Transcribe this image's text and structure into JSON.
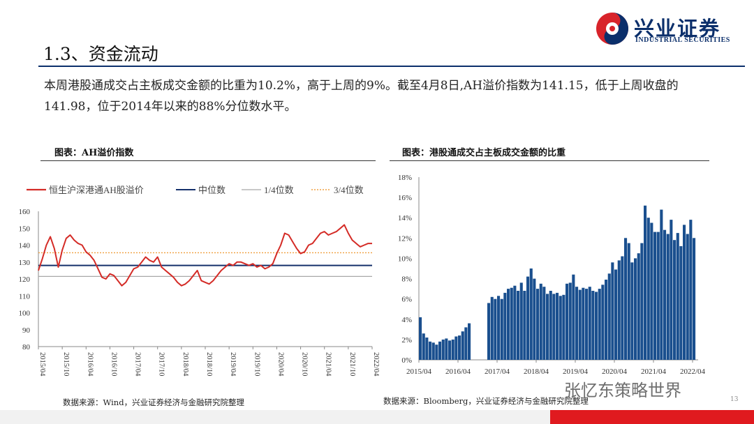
{
  "logo": {
    "cn": "兴业证券",
    "en": "INDUSTRIAL SECURITIES",
    "colors": {
      "red": "#d8232a",
      "blue": "#0b2f6b"
    }
  },
  "section_title": "1.3、资金流动",
  "summary": "本周港股通成交占主板成交金额的比重为10.2%，高于上周的9%。截至4月8日,AH溢价指数为141.15，低于上周收盘的141.98，位于2014年以来的88%分位数水平。",
  "left_panel": {
    "title": "图表：AH溢价指数",
    "source": "数据来源：Wind，兴业证券经济与金融研究院整理"
  },
  "right_panel": {
    "title": "图表：港股通成交占主板成交金额的比重",
    "source": "数据来源：Bloomberg，兴业证券经济与金融研究院整理"
  },
  "watermark": "张忆东策略世界",
  "page_number": "13",
  "chart_data": [
    {
      "type": "line",
      "legend": [
        "恒生沪深港通AH股溢价",
        "中位数",
        "1/4位数",
        "3/4位数"
      ],
      "legend_position": "top",
      "colors": {
        "series": "#d42b26",
        "median": "#15306b",
        "q1": "#a8a8a8",
        "q3": "#f0a040"
      },
      "ylim": [
        80,
        160
      ],
      "yticks": [
        80,
        90,
        100,
        110,
        120,
        130,
        140,
        150,
        160
      ],
      "xtick_labels": [
        "2015/04",
        "2015/10",
        "2016/04",
        "2016/10",
        "2017/04",
        "2017/10",
        "2018/04",
        "2018/10",
        "2019/04",
        "2019/10",
        "2020/04",
        "2020/10",
        "2021/04",
        "2021/10",
        "2022/04"
      ],
      "reference_lines": {
        "median": 128,
        "q1": 121.5,
        "q3": 135.5
      },
      "series": [
        {
          "name": "恒生沪深港通AH股溢价",
          "x": [
            "2015/04",
            "2015/05",
            "2015/06",
            "2015/07",
            "2015/08",
            "2015/09",
            "2015/10",
            "2015/11",
            "2015/12",
            "2016/01",
            "2016/02",
            "2016/03",
            "2016/04",
            "2016/05",
            "2016/06",
            "2016/07",
            "2016/08",
            "2016/09",
            "2016/10",
            "2016/11",
            "2016/12",
            "2017/01",
            "2017/02",
            "2017/03",
            "2017/04",
            "2017/05",
            "2017/06",
            "2017/07",
            "2017/08",
            "2017/09",
            "2017/10",
            "2017/11",
            "2017/12",
            "2018/01",
            "2018/02",
            "2018/03",
            "2018/04",
            "2018/05",
            "2018/06",
            "2018/07",
            "2018/08",
            "2018/09",
            "2018/10",
            "2018/11",
            "2018/12",
            "2019/01",
            "2019/02",
            "2019/03",
            "2019/04",
            "2019/05",
            "2019/06",
            "2019/07",
            "2019/08",
            "2019/09",
            "2019/10",
            "2019/11",
            "2019/12",
            "2020/01",
            "2020/02",
            "2020/03",
            "2020/04",
            "2020/05",
            "2020/06",
            "2020/07",
            "2020/08",
            "2020/09",
            "2020/10",
            "2020/11",
            "2020/12",
            "2021/01",
            "2021/02",
            "2021/03",
            "2021/04",
            "2021/05",
            "2021/06",
            "2021/07",
            "2021/08",
            "2021/09",
            "2021/10",
            "2021/11",
            "2021/12",
            "2022/01",
            "2022/02",
            "2022/03",
            "2022/04"
          ],
          "y": [
            125,
            132,
            140,
            145,
            138,
            127,
            137,
            144,
            146,
            143,
            141,
            140,
            136,
            134,
            131,
            126,
            121,
            120,
            123,
            122,
            119,
            116,
            118,
            122,
            126,
            127,
            130,
            133,
            131,
            130,
            133,
            127,
            125,
            123,
            121,
            118,
            116,
            117,
            119,
            122,
            125,
            119,
            118,
            117,
            119,
            122,
            125,
            127,
            129,
            128,
            130,
            130,
            129,
            128,
            129,
            127,
            128,
            126,
            127,
            129,
            135,
            140,
            147,
            146,
            142,
            138,
            135,
            136,
            140,
            141,
            144,
            147,
            148,
            146,
            147,
            148,
            150,
            152,
            147,
            143,
            141,
            139,
            140,
            141,
            141
          ]
        }
      ]
    },
    {
      "type": "bar",
      "ylim": [
        0,
        18
      ],
      "yticks": [
        "0%",
        "2%",
        "4%",
        "6%",
        "8%",
        "10%",
        "12%",
        "14%",
        "16%",
        "18%"
      ],
      "xtick_labels": [
        "2015/04",
        "2016/04",
        "2017/04",
        "2018/04",
        "2019/04",
        "2020/04",
        "2021/04",
        "2022/04"
      ],
      "bar_color": "#1a4f8e",
      "series": [
        {
          "x": [
            "2015/04",
            "2015/05",
            "2015/06",
            "2015/07",
            "2015/08",
            "2015/09",
            "2015/10",
            "2015/11",
            "2015/12",
            "2016/01",
            "2016/02",
            "2016/03",
            "2016/04",
            "2016/05",
            "2016/06",
            "2016/07",
            "2016/08",
            "2016/09",
            "2016/10",
            "2016/11",
            "2016/12",
            "2017/01",
            "2017/02",
            "2017/03",
            "2017/04",
            "2017/05",
            "2017/06",
            "2017/07",
            "2017/08",
            "2017/09",
            "2017/10",
            "2017/11",
            "2017/12",
            "2018/01",
            "2018/02",
            "2018/03",
            "2018/04",
            "2018/05",
            "2018/06",
            "2018/07",
            "2018/08",
            "2018/09",
            "2018/10",
            "2018/11",
            "2018/12",
            "2019/01",
            "2019/02",
            "2019/03",
            "2019/04",
            "2019/05",
            "2019/06",
            "2019/07",
            "2019/08",
            "2019/09",
            "2019/10",
            "2019/11",
            "2019/12",
            "2020/01",
            "2020/02",
            "2020/03",
            "2020/04",
            "2020/05",
            "2020/06",
            "2020/07",
            "2020/08",
            "2020/09",
            "2020/10",
            "2020/11",
            "2020/12",
            "2021/01",
            "2021/02",
            "2021/03",
            "2021/04",
            "2021/05",
            "2021/06",
            "2021/07",
            "2021/08",
            "2021/09",
            "2021/10",
            "2021/11",
            "2021/12",
            "2022/01",
            "2022/02",
            "2022/03",
            "2022/04"
          ],
          "y": [
            4.2,
            2.6,
            2.2,
            1.8,
            1.7,
            1.5,
            1.8,
            2.0,
            2.1,
            1.9,
            2.0,
            2.3,
            2.4,
            2.8,
            3.2,
            3.6,
            null,
            null,
            null,
            null,
            null,
            5.6,
            6.2,
            6.0,
            6.3,
            6.0,
            6.6,
            7.0,
            7.1,
            7.3,
            6.8,
            7.6,
            6.8,
            8.2,
            9.0,
            8.0,
            7.0,
            7.5,
            7.2,
            6.5,
            6.8,
            6.5,
            6.6,
            6.3,
            6.4,
            7.5,
            7.6,
            8.4,
            7.2,
            6.9,
            7.1,
            7.0,
            7.2,
            6.8,
            6.7,
            7.0,
            7.4,
            7.9,
            8.5,
            9.6,
            8.9,
            9.8,
            10.2,
            12.0,
            11.5,
            9.6,
            10.0,
            10.5,
            11.5,
            15.2,
            14.0,
            13.5,
            12.6,
            12.6,
            14.8,
            12.8,
            12.4,
            13.8,
            11.8,
            12.5,
            11.2,
            13.3,
            12.4,
            13.8,
            12.0
          ]
        }
      ]
    }
  ]
}
